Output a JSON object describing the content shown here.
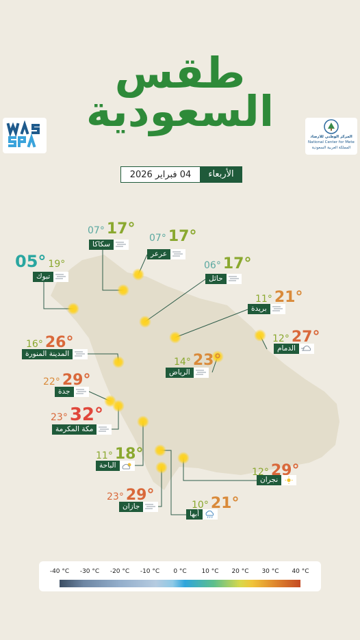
{
  "title": {
    "line1": "طقس",
    "line2": "السعودية"
  },
  "logos": {
    "spa": {
      "icon": "spa-logo-icon",
      "lettering": "WAS SPA"
    },
    "ncm": {
      "arabic": "المركز الوطني للأرصاد",
      "english": "National Center for Meteorology",
      "sub": "المملكة العربية السعودية"
    }
  },
  "date": {
    "day": "الأربعاء",
    "date": "04 فبراير 2026"
  },
  "colors": {
    "green_title": "#2e8a39",
    "label_bg": "#1f5a3a",
    "map_fill": "#e3ddcb",
    "page_bg": "#efebe1"
  },
  "cities": [
    {
      "id": "sakaka",
      "name": "سكاكا",
      "max": "17°",
      "min": "07°",
      "max_color": "#8aa82f",
      "min_color": "#5ba8a0",
      "icon": "wind-icon"
    },
    {
      "id": "arar",
      "name": "عرعر",
      "max": "17°",
      "min": "07°",
      "max_color": "#8aa82f",
      "min_color": "#5ba8a0",
      "icon": "wind-icon"
    },
    {
      "id": "tabuk",
      "name": "تبوك",
      "max": "19°",
      "min": "05°",
      "max_color": "#8aa82f",
      "min_color": "#2aa6a0",
      "icon": "wind-icon"
    },
    {
      "id": "hail",
      "name": "حائل",
      "max": "17°",
      "min": "06°",
      "max_color": "#8aa82f",
      "min_color": "#5ba8a0",
      "icon": "wind-icon"
    },
    {
      "id": "buraydah",
      "name": "بريدة",
      "max": "21°",
      "min": "11°",
      "max_color": "#d98a3a",
      "min_color": "#8aa82f",
      "icon": "wind-icon"
    },
    {
      "id": "dammam",
      "name": "الدمام",
      "max": "27°",
      "min": "12°",
      "max_color": "#d9683a",
      "min_color": "#8aa82f",
      "icon": "windy-cloud-icon"
    },
    {
      "id": "madinah",
      "name": "المدينة المنورة",
      "max": "26°",
      "min": "16°",
      "max_color": "#d9683a",
      "min_color": "#8aa82f",
      "icon": "wind-icon"
    },
    {
      "id": "riyadh",
      "name": "الرياض",
      "max": "23°",
      "min": "14°",
      "max_color": "#d98a3a",
      "min_color": "#8aa82f",
      "icon": "wind-icon"
    },
    {
      "id": "jeddah",
      "name": "جدة",
      "max": "29°",
      "min": "22°",
      "max_color": "#d9683a",
      "min_color": "#d98a3a",
      "icon": "wind-icon"
    },
    {
      "id": "makkah",
      "name": "مكة المكرمة",
      "max": "32°",
      "min": "23°",
      "max_color": "#e0463a",
      "min_color": "#d9683a",
      "icon": "wind-icon"
    },
    {
      "id": "baha",
      "name": "الباحة",
      "max": "18°",
      "min": "11°",
      "max_color": "#8aa82f",
      "min_color": "#8aa82f",
      "icon": "cloud-sun-icon"
    },
    {
      "id": "najran",
      "name": "نجران",
      "max": "29°",
      "min": "12°",
      "max_color": "#d9683a",
      "min_color": "#8aa82f",
      "icon": "sun-icon"
    },
    {
      "id": "jazan",
      "name": "جازان",
      "max": "29°",
      "min": "23°",
      "max_color": "#d9683a",
      "min_color": "#d9683a",
      "icon": "wind-icon"
    },
    {
      "id": "abha",
      "name": "أبها",
      "max": "21°",
      "min": "10°",
      "max_color": "#d98a3a",
      "min_color": "#8aa82f",
      "icon": "rain-cloud-icon"
    }
  ],
  "legend": {
    "ticks": [
      "-40 °C",
      "-30 °C",
      "-20 °C",
      "-10 °C",
      "0 °C",
      "10 °C",
      "20 °C",
      "30 °C",
      "40 °C"
    ]
  }
}
